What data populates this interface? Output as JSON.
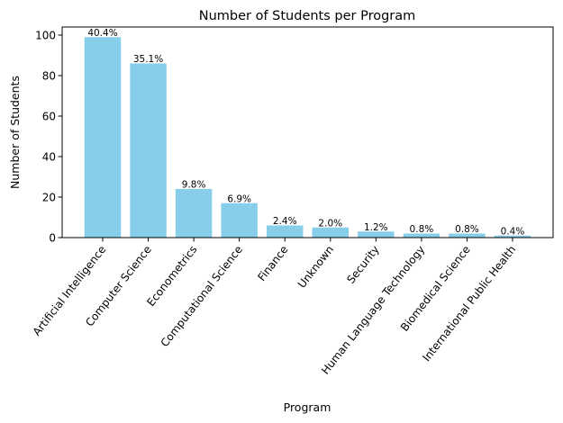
{
  "chart_data": {
    "type": "bar",
    "title": "Number of Students per Program",
    "xlabel": "Program",
    "ylabel": "Number of Students",
    "ylim": [
      0,
      104
    ],
    "yticks": [
      0,
      20,
      40,
      60,
      80,
      100
    ],
    "grid": false,
    "bar_color": "#87ceeb",
    "categories": [
      "Artificial Intelligence",
      "Computer Science",
      "Econometrics",
      "Computational Science",
      "Finance",
      "Unknown",
      "Security",
      "Human Language Technology",
      "Biomedical Science",
      "International Public Health"
    ],
    "values": [
      99,
      86,
      24,
      17,
      6,
      5,
      3,
      2,
      2,
      1
    ],
    "data_labels": [
      "40.4%",
      "35.1%",
      "9.8%",
      "6.9%",
      "2.4%",
      "2.0%",
      "1.2%",
      "0.8%",
      "0.8%",
      "0.4%"
    ]
  }
}
